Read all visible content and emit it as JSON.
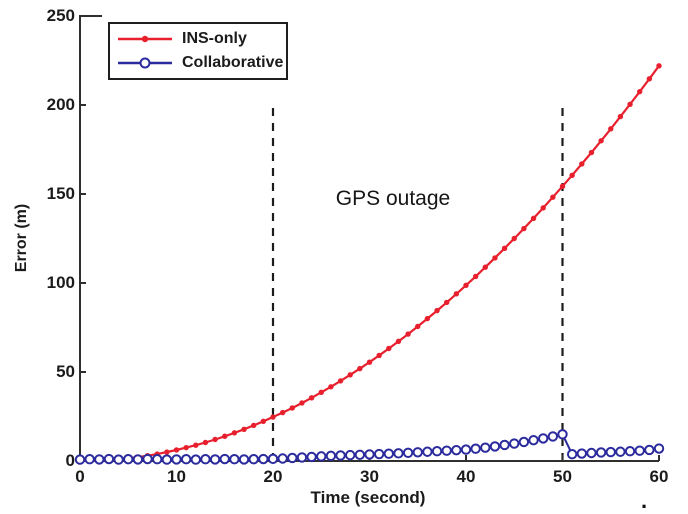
{
  "chart_data": {
    "type": "line",
    "title": "",
    "xlabel": "Time (second)",
    "ylabel": "Error (m)",
    "xlim": [
      0,
      60
    ],
    "ylim": [
      0,
      250
    ],
    "x_ticks": [
      0,
      10,
      20,
      30,
      40,
      50,
      60
    ],
    "y_ticks": [
      0,
      50,
      100,
      150,
      200,
      250
    ],
    "grid": false,
    "legend_position": "top-left",
    "annotations": [
      {
        "text": "GPS outage",
        "x": 32.5,
        "y": 147
      }
    ],
    "outage_lines": {
      "x_values": [
        20,
        50
      ],
      "y_span": [
        0,
        200
      ],
      "style": "dashed",
      "color": "#1c1c1c"
    },
    "x_step": 1,
    "series": [
      {
        "name": "INS-only",
        "color": "#e8202e",
        "marker": "filled-dot",
        "values": [
          0.0,
          0.1,
          0.2,
          0.6,
          1.0,
          1.5,
          2.2,
          3.0,
          3.9,
          5.0,
          6.2,
          7.5,
          8.9,
          10.4,
          12.1,
          13.9,
          15.8,
          17.8,
          20.0,
          22.3,
          24.7,
          27.2,
          29.8,
          32.6,
          35.5,
          38.6,
          41.7,
          45.0,
          48.4,
          51.9,
          55.5,
          59.3,
          63.2,
          67.2,
          71.3,
          75.6,
          80.0,
          84.5,
          89.1,
          93.9,
          98.7,
          103.7,
          108.9,
          114.1,
          119.5,
          125.0,
          130.6,
          136.3,
          142.2,
          148.2,
          154.3,
          160.5,
          166.9,
          173.3,
          179.9,
          186.6,
          193.5,
          200.4,
          207.5,
          214.7,
          222.0
        ]
      },
      {
        "name": "Collaborative",
        "color": "#2b2b9e",
        "marker": "open-circle",
        "values": [
          0.8,
          1.0,
          0.9,
          1.1,
          0.8,
          1.0,
          0.9,
          1.1,
          1.0,
          0.8,
          0.9,
          1.0,
          0.8,
          1.0,
          0.9,
          1.1,
          1.0,
          0.9,
          1.0,
          1.1,
          1.2,
          1.4,
          1.7,
          2.0,
          2.3,
          2.6,
          2.9,
          3.1,
          3.3,
          3.5,
          3.7,
          3.9,
          4.1,
          4.3,
          4.6,
          4.9,
          5.2,
          5.5,
          5.8,
          6.1,
          6.4,
          6.9,
          7.5,
          8.2,
          9.0,
          9.8,
          10.7,
          11.7,
          12.7,
          13.8,
          15.0,
          3.8,
          4.2,
          4.5,
          4.8,
          5.0,
          5.2,
          5.5,
          5.8,
          6.2,
          7.0
        ]
      }
    ],
    "axis_color": "#2f2f2f"
  },
  "stray_mark": "."
}
